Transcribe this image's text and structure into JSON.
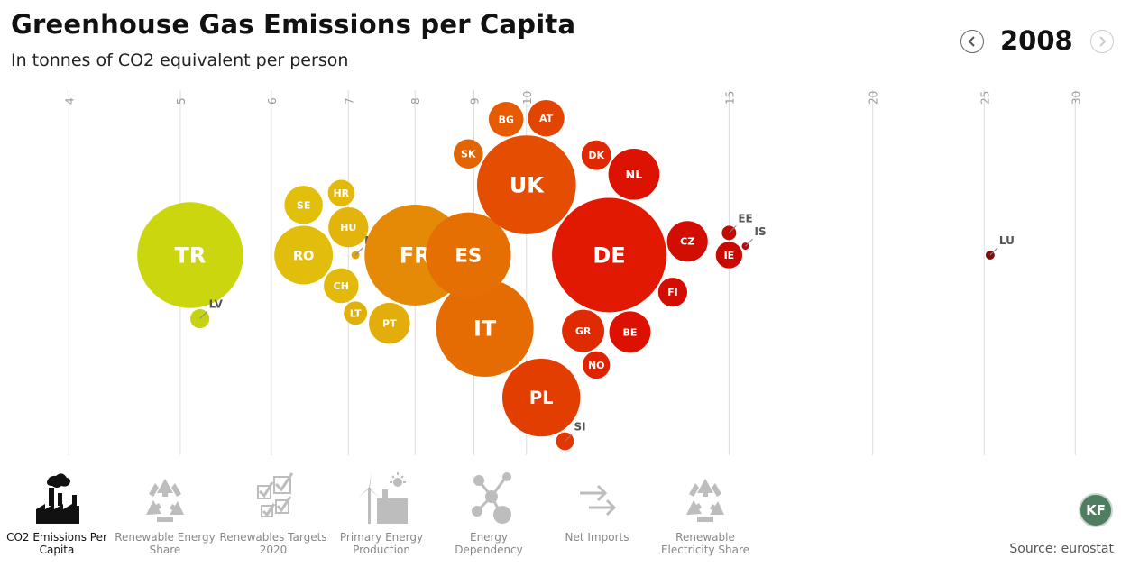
{
  "header": {
    "title": "Greenhouse Gas Emissions per Capita",
    "subtitle": "In tonnes of CO2 equivalent per person",
    "year": "2008"
  },
  "chart_data": {
    "type": "scatter",
    "title": "Greenhouse Gas Emissions per Capita",
    "subtitle": "In tonnes of CO2 equivalent per person",
    "x_scale": "log",
    "xlim": [
      3.6,
      32
    ],
    "x_ticks": [
      4,
      5,
      6,
      7,
      8,
      9,
      10,
      15,
      20,
      25,
      30
    ],
    "x_tick_labels": [
      "4",
      "5",
      "6",
      "7",
      "8",
      "9",
      "10",
      "15",
      "20",
      "25",
      "30"
    ],
    "grid": true,
    "points": [
      {
        "label": "TR",
        "x": 5.1,
        "population_m": 70.4,
        "color": "#ccd60e"
      },
      {
        "label": "LV",
        "x": 5.2,
        "population_m": 2.3,
        "color": "#c6d40f"
      },
      {
        "label": "CH",
        "x": 6.9,
        "population_m": 7.6,
        "color": "#e3b90b"
      },
      {
        "label": "HR",
        "x": 6.9,
        "population_m": 4.4,
        "color": "#e3b90b"
      },
      {
        "label": "SE",
        "x": 6.4,
        "population_m": 9.2,
        "color": "#e2bf0b"
      },
      {
        "label": "MT",
        "x": 7.1,
        "population_m": 0.4,
        "color": "#e0a30a"
      },
      {
        "label": "HU",
        "x": 7.0,
        "population_m": 10.0,
        "color": "#e3b40b"
      },
      {
        "label": "LT",
        "x": 7.1,
        "population_m": 3.4,
        "color": "#e2b00b"
      },
      {
        "label": "RO",
        "x": 6.4,
        "population_m": 21.5,
        "color": "#e2bd0b"
      },
      {
        "label": "PT",
        "x": 7.6,
        "population_m": 10.6,
        "color": "#e3ae0b"
      },
      {
        "label": "FR",
        "x": 8.0,
        "population_m": 64.0,
        "color": "#e58a06"
      },
      {
        "label": "IT",
        "x": 9.2,
        "population_m": 59.6,
        "color": "#e56c03"
      },
      {
        "label": "ES",
        "x": 8.9,
        "population_m": 45.7,
        "color": "#e56f03"
      },
      {
        "label": "SK",
        "x": 8.9,
        "population_m": 5.4,
        "color": "#e26402"
      },
      {
        "label": "BG",
        "x": 9.6,
        "population_m": 7.6,
        "color": "#e65a02"
      },
      {
        "label": "UK",
        "x": 10.0,
        "population_m": 61.4,
        "color": "#e54e02"
      },
      {
        "label": "PL",
        "x": 10.3,
        "population_m": 38.1,
        "color": "#e33e02"
      },
      {
        "label": "AT",
        "x": 10.4,
        "population_m": 8.3,
        "color": "#e44402"
      },
      {
        "label": "SI",
        "x": 10.8,
        "population_m": 2.0,
        "color": "#e23702"
      },
      {
        "label": "NO",
        "x": 11.5,
        "population_m": 4.7,
        "color": "#e02202"
      },
      {
        "label": "DK",
        "x": 11.5,
        "population_m": 5.5,
        "color": "#e02802"
      },
      {
        "label": "GR",
        "x": 11.2,
        "population_m": 11.2,
        "color": "#e02a02"
      },
      {
        "label": "DE",
        "x": 11.8,
        "population_m": 82.2,
        "color": "#e21902"
      },
      {
        "label": "NL",
        "x": 12.4,
        "population_m": 16.4,
        "color": "#dc1202"
      },
      {
        "label": "BE",
        "x": 12.3,
        "population_m": 10.7,
        "color": "#dc1102"
      },
      {
        "label": "CZ",
        "x": 13.8,
        "population_m": 10.4,
        "color": "#d20e02"
      },
      {
        "label": "FI",
        "x": 13.4,
        "population_m": 5.3,
        "color": "#d30d02"
      },
      {
        "label": "IE",
        "x": 15.0,
        "population_m": 4.4,
        "color": "#c80a02"
      },
      {
        "label": "EE",
        "x": 15.0,
        "population_m": 1.3,
        "color": "#c10a02"
      },
      {
        "label": "IS",
        "x": 15.5,
        "population_m": 0.3,
        "color": "#b80808"
      },
      {
        "label": "LU",
        "x": 25.3,
        "population_m": 0.5,
        "color": "#7e0d0d"
      }
    ]
  },
  "menu": [
    {
      "label": "CO2 Emissions Per Capita",
      "icon": "factory-icon",
      "active": true
    },
    {
      "label": "Renewable Energy Share",
      "icon": "recycle-icon",
      "active": false
    },
    {
      "label": "Renewables Targets 2020",
      "icon": "checkbox-icon",
      "active": false
    },
    {
      "label": "Primary Energy Production",
      "icon": "windmill-icon",
      "active": false
    },
    {
      "label": "Energy Dependency",
      "icon": "network-icon",
      "active": false
    },
    {
      "label": "Net Imports",
      "icon": "arrows-icon",
      "active": false
    },
    {
      "label": "Renewable Electricity Share",
      "icon": "recycle-icon",
      "active": false
    }
  ],
  "logo": {
    "text": "KF"
  },
  "footer": {
    "source": "Source: eurostat"
  }
}
